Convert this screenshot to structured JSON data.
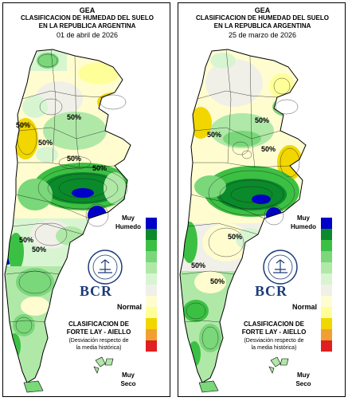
{
  "panels": [
    {
      "header_org": "GEA",
      "header_title_1": "CLASIFICACION DE HUMEDAD DEL SUELO",
      "header_title_2": "EN LA REPUBLICA ARGENTINA",
      "date": "01 de abril de 2026",
      "contour_labels": [
        "50%",
        "50%",
        "50%",
        "50%",
        "50%",
        "50%",
        "50%"
      ]
    },
    {
      "header_org": "GEA",
      "header_title_1": "CLASIFICACION DE HUMEDAD DEL SUELO",
      "header_title_2": "EN LA REPUBLICA ARGENTINA",
      "date": "25 de marzo de 2026",
      "contour_labels": [
        "50%",
        "50%",
        "50%",
        "50%",
        "50%",
        "50%"
      ]
    }
  ],
  "legend": {
    "top_label_1": "Muy",
    "top_label_2": "Humedo",
    "middle_label": "Normal",
    "bottom_label_1": "Muy",
    "bottom_label_2": "Seco",
    "colors": [
      "#0000c8",
      "#0a8a2a",
      "#3cc043",
      "#7ad77a",
      "#b0e8a8",
      "#d8f5d2",
      "#f0f0e8",
      "#fffdd0",
      "#ffff9a",
      "#f2d600",
      "#f0a030",
      "#e02020"
    ]
  },
  "brand": {
    "logo_text": "BOLSA DE COMERCIO DE ROSARIO",
    "name": "BCR",
    "classification_1": "CLASIFICACION DE",
    "classification_2": "FORTE LAY - AIELLO",
    "description_1": "(Desviación respecto de",
    "description_2": "la media histórica)"
  }
}
